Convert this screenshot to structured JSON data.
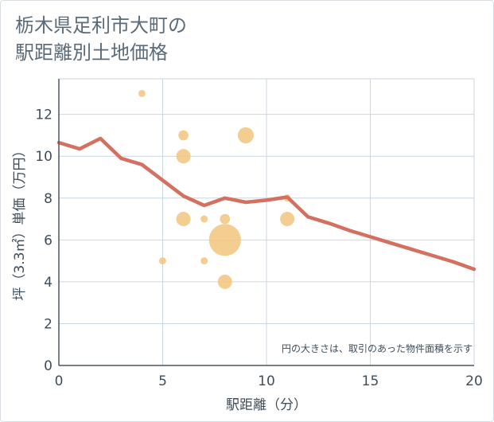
{
  "header": {
    "title_line1": "栃木県足利市大町の",
    "title_line2": "駅距離別土地価格"
  },
  "chart_data": {
    "type": "scatter",
    "title": "栃木県足利市大町の駅距離別土地価格",
    "xlabel": "駅距離（分）",
    "ylabel": "坪（3.3㎡）単価（万円）",
    "xlim": [
      0,
      20
    ],
    "ylim": [
      0,
      13.7
    ],
    "xticks": [
      "0",
      "5",
      "10",
      "15",
      "20"
    ],
    "yticks": [
      "0",
      "2",
      "4",
      "6",
      "8",
      "10",
      "12"
    ],
    "grid": true,
    "note": "円の大きさは、取引のあった物件面積を示す",
    "colors": {
      "bubble": "#f2c57c",
      "line": "#d4705f",
      "grid": "#c9d6e2",
      "axis": "#4a5763"
    },
    "bubbles": [
      {
        "x": 4,
        "y": 13.0,
        "size": 1
      },
      {
        "x": 5,
        "y": 5.0,
        "size": 1
      },
      {
        "x": 6,
        "y": 11.0,
        "size": 2
      },
      {
        "x": 6,
        "y": 10.0,
        "size": 4
      },
      {
        "x": 6,
        "y": 7.0,
        "size": 4
      },
      {
        "x": 7,
        "y": 7.0,
        "size": 1
      },
      {
        "x": 7,
        "y": 5.0,
        "size": 1
      },
      {
        "x": 8,
        "y": 7.0,
        "size": 2
      },
      {
        "x": 8,
        "y": 6.0,
        "size": 20
      },
      {
        "x": 8,
        "y": 4.0,
        "size": 4
      },
      {
        "x": 9,
        "y": 11.0,
        "size": 5
      },
      {
        "x": 11,
        "y": 8.0,
        "size": 1
      },
      {
        "x": 11,
        "y": 7.0,
        "size": 4
      }
    ],
    "line": {
      "x": [
        0,
        1,
        2,
        3,
        4,
        5,
        6,
        7,
        8,
        9,
        10,
        11,
        12,
        13,
        14,
        15,
        16,
        17,
        18,
        19,
        20
      ],
      "y": [
        10.65,
        10.35,
        10.85,
        9.9,
        9.6,
        8.85,
        8.1,
        7.65,
        8.0,
        7.8,
        7.9,
        8.05,
        7.1,
        6.8,
        6.45,
        6.15,
        5.85,
        5.55,
        5.25,
        4.95,
        4.6
      ]
    }
  }
}
